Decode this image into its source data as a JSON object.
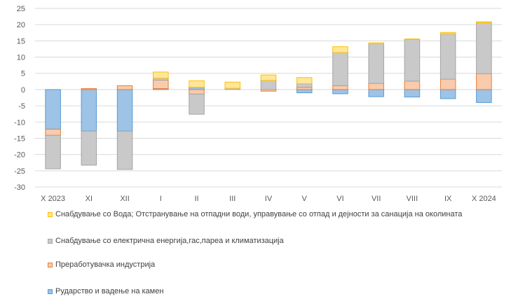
{
  "chart_data": {
    "type": "bar",
    "stacked": true,
    "categories": [
      "X 2023",
      "XI",
      "XII",
      "I",
      "II",
      "III",
      "IV",
      "V",
      "VI",
      "VII",
      "VIII",
      "IX",
      "X 2024"
    ],
    "yticks": [
      25,
      20,
      15,
      10,
      5,
      0,
      -5,
      -10,
      -15,
      -20,
      -25,
      -30
    ],
    "ylim": [
      -30,
      25
    ],
    "grid": true,
    "legend_position": "bottom",
    "series": [
      {
        "name": "Рударство и вадење на камен",
        "color": "#9DC3E6",
        "edge": "#5B9BD5",
        "values": [
          -12.2,
          -12.8,
          -12.8,
          0.3,
          0.7,
          0.0,
          0.0,
          -1.0,
          -1.3,
          -2.2,
          -2.3,
          -2.8,
          -4.0
        ]
      },
      {
        "name": "Преработувачка индустрија",
        "color": "#F8CBAD",
        "edge": "#ED7D31",
        "values": [
          -1.9,
          0.3,
          1.2,
          2.6,
          -1.4,
          0.0,
          -0.5,
          0.7,
          1.2,
          1.9,
          2.6,
          3.2,
          4.9
        ]
      },
      {
        "name": "Снабдување со електрична енергија,гас,пареа и климатизација",
        "color": "#C9C9C9",
        "edge": "#A5A5A5",
        "values": [
          -10.3,
          -10.5,
          -11.8,
          0.6,
          -6.2,
          0.4,
          2.8,
          1.1,
          10.2,
          12.2,
          12.8,
          14.0,
          15.7
        ]
      },
      {
        "name": "Снабдување со Вода; Отстранување на отпадни води, управување со отпад и дејности за санација на околината",
        "color": "#FFE699",
        "edge": "#FFC000",
        "values": [
          0.0,
          0.0,
          0.0,
          1.9,
          2.0,
          1.9,
          1.7,
          1.9,
          1.8,
          0.3,
          0.2,
          0.4,
          0.3
        ]
      }
    ],
    "legend_order": [
      3,
      2,
      1,
      0
    ]
  }
}
